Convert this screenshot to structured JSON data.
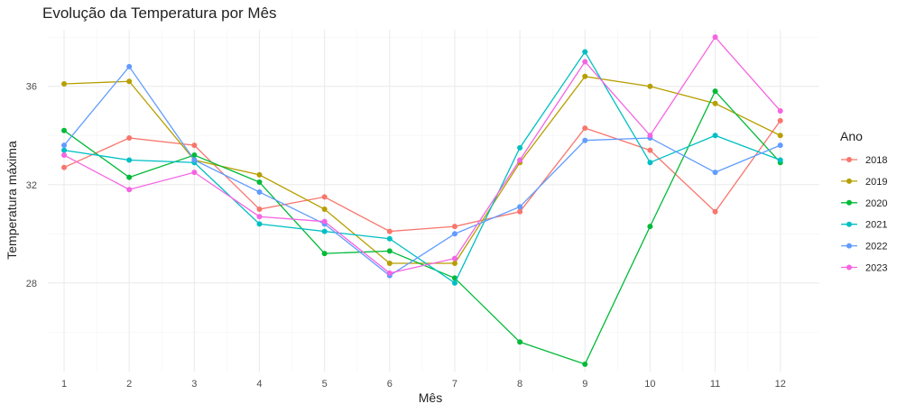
{
  "chart_data": {
    "type": "line",
    "title": "Evolução da Temperatura por Mês",
    "xlabel": "Mês",
    "ylabel": "Temperatura máxima",
    "x": [
      1,
      2,
      3,
      4,
      5,
      6,
      7,
      8,
      9,
      10,
      11,
      12
    ],
    "x_tick_labels": [
      "1",
      "2",
      "3",
      "4",
      "5",
      "6",
      "7",
      "8",
      "9",
      "10",
      "11",
      "12"
    ],
    "y_ticks": [
      28,
      32,
      36
    ],
    "y_tick_labels": [
      "28",
      "32",
      "36"
    ],
    "xlim": [
      0.75,
      12.6
    ],
    "ylim": [
      24.4,
      38.3
    ],
    "grid": true,
    "legend_title": "Ano",
    "legend_position": "right",
    "series": [
      {
        "name": "2018",
        "color": "#F8766D",
        "values": [
          32.7,
          33.9,
          33.6,
          31.0,
          31.5,
          30.1,
          30.3,
          30.9,
          34.3,
          33.4,
          30.9,
          34.6
        ]
      },
      {
        "name": "2019",
        "color": "#B79F00",
        "values": [
          36.1,
          36.2,
          33.0,
          32.4,
          31.0,
          28.8,
          28.8,
          32.9,
          36.4,
          36.0,
          35.3,
          34.0
        ]
      },
      {
        "name": "2020",
        "color": "#00BA38",
        "values": [
          34.2,
          32.3,
          33.2,
          32.1,
          29.2,
          29.3,
          28.2,
          25.6,
          24.7,
          30.3,
          35.8,
          32.9
        ]
      },
      {
        "name": "2021",
        "color": "#00BFC4",
        "values": [
          33.4,
          33.0,
          32.9,
          30.4,
          30.1,
          29.8,
          28.0,
          33.5,
          37.4,
          32.9,
          34.0,
          33.0
        ]
      },
      {
        "name": "2022",
        "color": "#619CFF",
        "values": [
          33.6,
          36.8,
          33.0,
          31.7,
          30.4,
          28.3,
          30.0,
          31.1,
          33.8,
          33.9,
          32.5,
          33.6
        ]
      },
      {
        "name": "2023",
        "color": "#F564E3",
        "values": [
          33.2,
          31.8,
          32.5,
          30.7,
          30.5,
          28.4,
          29.0,
          33.0,
          37.0,
          34.0,
          38.0,
          35.0
        ]
      }
    ]
  }
}
